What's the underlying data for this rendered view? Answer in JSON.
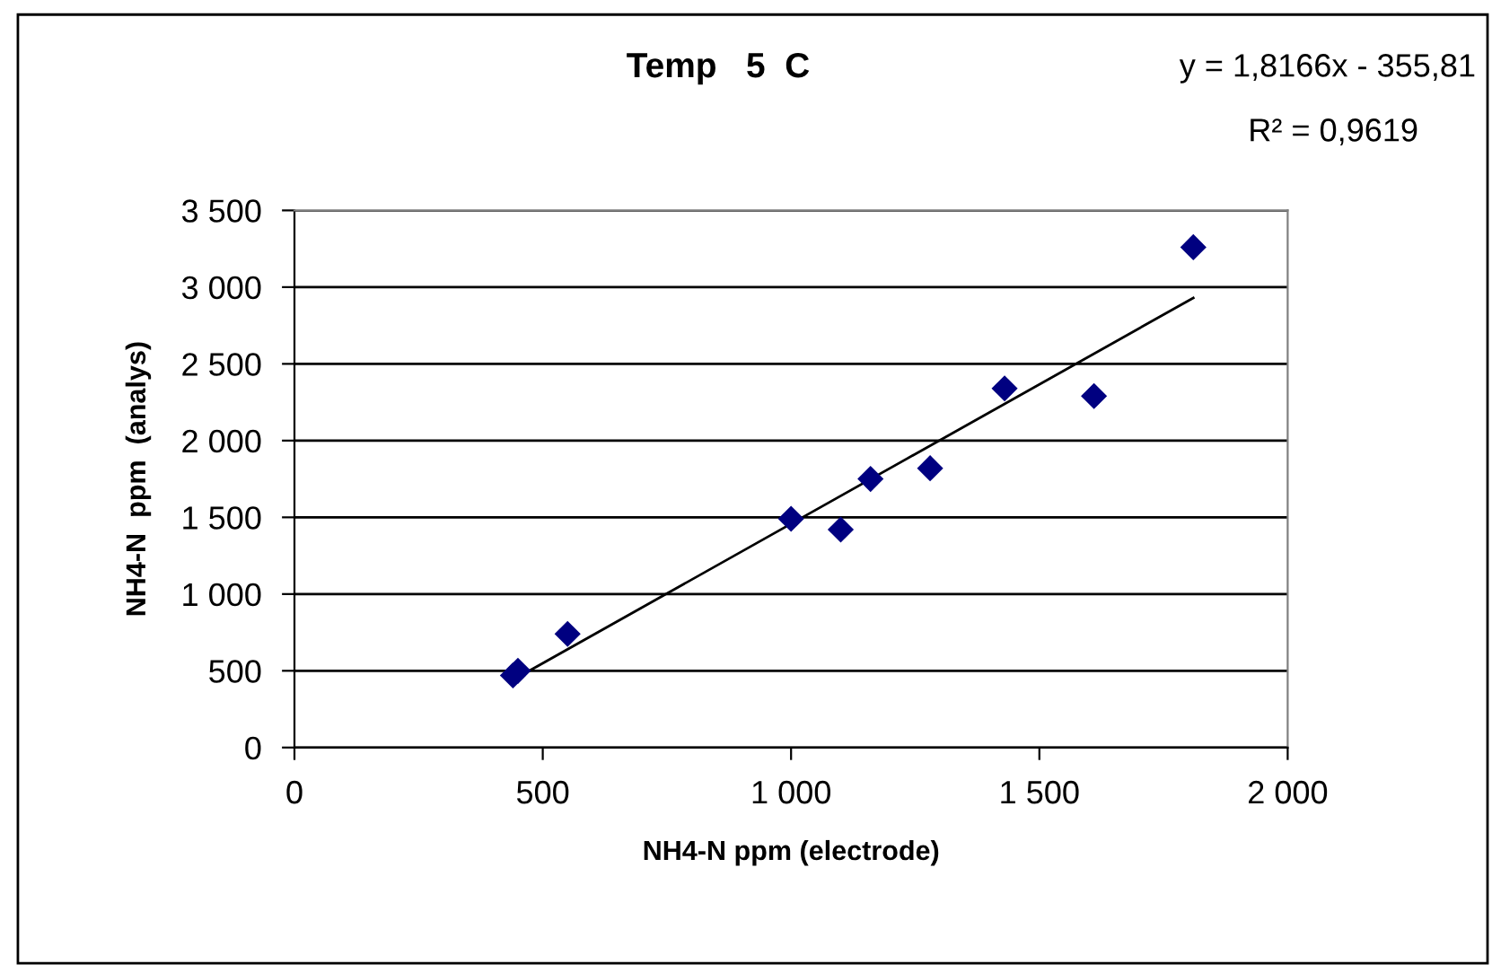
{
  "chart_data": {
    "type": "scatter",
    "title": "Temp   5  C",
    "xlabel": "NH4-N ppm (electrode)",
    "ylabel": "NH4-N  ppm  (analys)",
    "annotations": [
      "y = 1,8166x - 355,81",
      "R² = 0,9619"
    ],
    "series": [
      {
        "color": "#000080",
        "marker": "diamond",
        "x": [
          440,
          450,
          550,
          1000,
          1100,
          1160,
          1280,
          1430,
          1610,
          1810
        ],
        "values": [
          470,
          500,
          740,
          1490,
          1420,
          1750,
          1820,
          2340,
          2290,
          3260
        ]
      },
      {
        "type": "line",
        "color": "#000000",
        "marker": "none",
        "line_style": "solid",
        "x": [
          440,
          1810
        ],
        "values": [
          440,
          2930
        ]
      }
    ],
    "xlim": [
      0,
      2000
    ],
    "ylim": [
      0,
      3500
    ],
    "xticks": [
      0,
      500,
      {
        "value": 1000,
        "label": "1 000"
      },
      {
        "value": 1500,
        "label": "1 500"
      },
      {
        "value": 2000,
        "label": "2 000"
      }
    ],
    "yticks": [
      0,
      500,
      {
        "value": 1000,
        "label": "1 000"
      },
      {
        "value": 1500,
        "label": "1 500"
      },
      {
        "value": 2000,
        "label": "2 000"
      },
      {
        "value": 2500,
        "label": "2 500"
      },
      {
        "value": 3000,
        "label": "3 000"
      },
      {
        "value": 3500,
        "label": "3 500"
      }
    ],
    "grid": "y",
    "legend": false
  }
}
